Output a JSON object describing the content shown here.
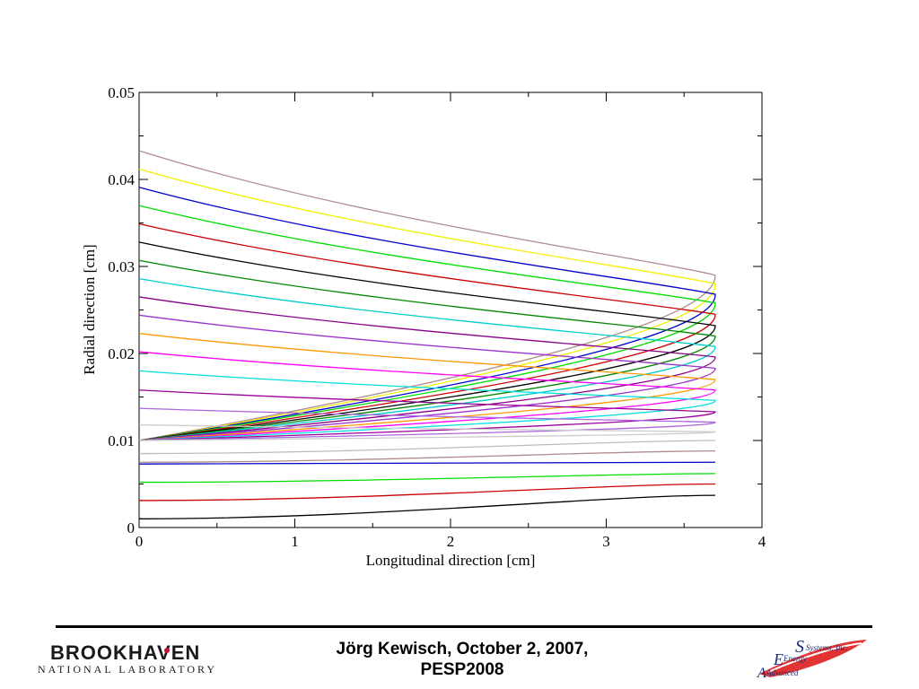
{
  "chart_data": {
    "type": "line",
    "title": "",
    "xlabel": "Longitudinal direction [cm]",
    "ylabel": "Radial direction [cm]",
    "xlim": [
      0,
      4
    ],
    "ylim": [
      0,
      0.05
    ],
    "x_ticks": [
      "0",
      "1",
      "2",
      "3",
      "4"
    ],
    "y_ticks": [
      "0",
      "0.01",
      "0.02",
      "0.03",
      "0.04",
      "0.05"
    ],
    "grid": false,
    "legend": "none",
    "upper_branches": [
      {
        "color": "#b08c8c",
        "y_start": 0.0433,
        "tip_x": 3.7,
        "tip_y": 0.029
      },
      {
        "color": "#f0f000",
        "y_start": 0.0412,
        "tip_x": 3.7,
        "tip_y": 0.028
      },
      {
        "color": "#0000cc",
        "y_start": 0.0391,
        "tip_x": 3.7,
        "tip_y": 0.0268
      },
      {
        "color": "#00dd00",
        "y_start": 0.037,
        "tip_x": 3.7,
        "tip_y": 0.0258
      },
      {
        "color": "#cc0000",
        "y_start": 0.0349,
        "tip_x": 3.7,
        "tip_y": 0.0245
      },
      {
        "color": "#000000",
        "y_start": 0.0328,
        "tip_x": 3.7,
        "tip_y": 0.0232
      },
      {
        "color": "#008800",
        "y_start": 0.0307,
        "tip_x": 3.7,
        "tip_y": 0.022
      },
      {
        "color": "#00cccc",
        "y_start": 0.0286,
        "tip_x": 3.7,
        "tip_y": 0.0208
      },
      {
        "color": "#880088",
        "y_start": 0.0265,
        "tip_x": 3.7,
        "tip_y": 0.0196
      },
      {
        "color": "#9933cc",
        "y_start": 0.0244,
        "tip_x": 3.7,
        "tip_y": 0.0183
      },
      {
        "color": "#ff9900",
        "y_start": 0.0223,
        "tip_x": 3.7,
        "tip_y": 0.017
      },
      {
        "color": "#ff00ff",
        "y_start": 0.0202,
        "tip_x": 3.7,
        "tip_y": 0.0158
      },
      {
        "color": "#00dddd",
        "y_start": 0.018,
        "tip_x": 3.7,
        "tip_y": 0.0146
      },
      {
        "color": "#990099",
        "y_start": 0.0158,
        "tip_x": 3.7,
        "tip_y": 0.0133
      },
      {
        "color": "#aa66dd",
        "y_start": 0.0137,
        "tip_x": 3.7,
        "tip_y": 0.0121
      },
      {
        "color": "#cccccc",
        "y_start": 0.0118,
        "tip_x": 3.7,
        "tip_y": 0.011
      }
    ],
    "lower_branches": [
      {
        "color": "#bbbbbb",
        "y_start": 0.0085,
        "y_end": 0.01
      },
      {
        "color": "#b08c8c",
        "y_start": 0.0075,
        "y_end": 0.0088
      },
      {
        "color": "#0000cc",
        "y_start": 0.0073,
        "y_end": 0.0075
      },
      {
        "color": "#00dd00",
        "y_start": 0.0052,
        "y_end": 0.0062
      },
      {
        "color": "#cc0000",
        "y_start": 0.0031,
        "y_end": 0.005
      },
      {
        "color": "#000000",
        "y_start": 0.001,
        "y_end": 0.0037
      }
    ]
  },
  "footer": {
    "author_line": "Jörg Kewisch, October 2, 2007,",
    "event_line": "PESP2008"
  },
  "logos": {
    "bnl_name": "BROOKHAVEN",
    "bnl_subtitle": "NATIONAL LABORATORY",
    "aes_systems": "Systems, Inc.",
    "aes_energy": "Energy",
    "aes_advanced": "Advanced",
    "aes_letter_s": "S",
    "aes_letter_e": "E",
    "aes_letter_a": "A"
  }
}
